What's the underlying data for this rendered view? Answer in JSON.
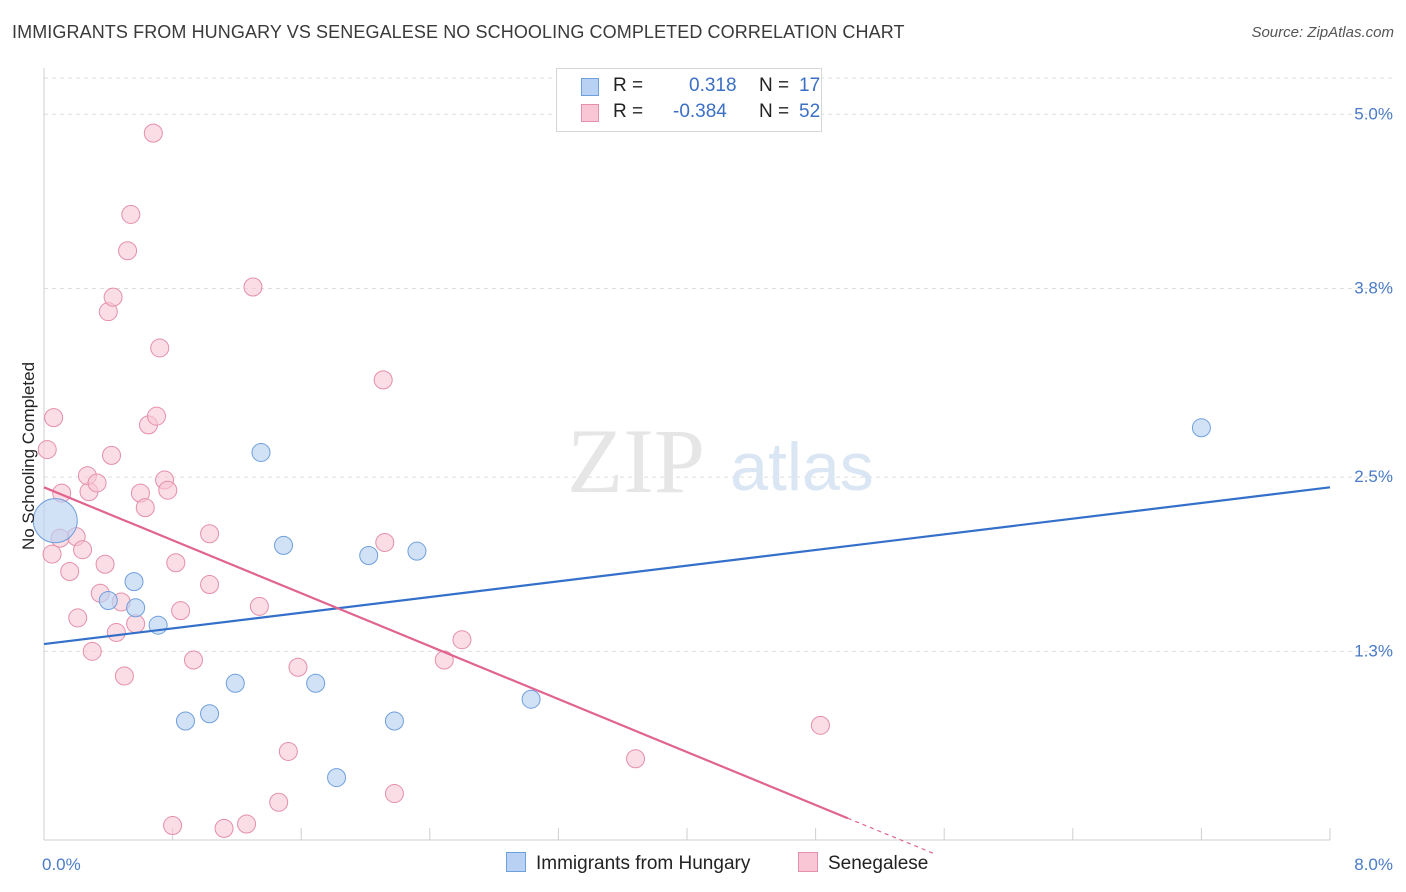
{
  "title": "IMMIGRANTS FROM HUNGARY VS SENEGALESE NO SCHOOLING COMPLETED CORRELATION CHART",
  "source": "Source: ZipAtlas.com",
  "watermark": {
    "zip": "ZIP",
    "atlas": "atlas"
  },
  "colors": {
    "hungary_fill": "#b9d2f3",
    "hungary_stroke": "#6f9fdc",
    "hungary_line": "#3470c9",
    "senegal_fill": "#f9c6d5",
    "senegal_stroke": "#e48fab",
    "senegal_line": "#e0648f",
    "tick_text": "#4a7bc8",
    "grid": "#dddddd"
  },
  "legend": {
    "rows": [
      {
        "r_label": "R =",
        "r_value": "0.318",
        "n_label": "N =",
        "n_value": "17"
      },
      {
        "r_label": "R =",
        "r_value": "-0.384",
        "n_label": "N =",
        "n_value": "52"
      }
    ]
  },
  "bottom_legend": {
    "hungary": "Immigrants from Hungary",
    "senegal": "Senegalese"
  },
  "chart_data": {
    "type": "scatter",
    "title": "IMMIGRANTS FROM HUNGARY VS SENEGALESE NO SCHOOLING COMPLETED CORRELATION CHART",
    "xlabel": "",
    "ylabel": "No Schooling Completed",
    "xlim": [
      0,
      8.0
    ],
    "ylim": [
      0,
      5.25
    ],
    "x_tick_labels": [
      "0.0%",
      "8.0%"
    ],
    "y_ticks": [
      1.3,
      2.5,
      3.8,
      5.0
    ],
    "y_tick_labels": [
      "1.3%",
      "2.5%",
      "3.8%",
      "5.0%"
    ],
    "grid": true,
    "legend_placement": "top-center",
    "series": [
      {
        "name": "Immigrants from Hungary",
        "r": 0.318,
        "n": 17,
        "points": [
          [
            0.07,
            2.2,
            22
          ],
          [
            0.4,
            1.65,
            9
          ],
          [
            0.57,
            1.6,
            9
          ],
          [
            0.56,
            1.78,
            9
          ],
          [
            0.71,
            1.48,
            9
          ],
          [
            0.88,
            0.82,
            9
          ],
          [
            1.03,
            0.87,
            9
          ],
          [
            1.19,
            1.08,
            9
          ],
          [
            1.35,
            2.67,
            9
          ],
          [
            1.49,
            2.03,
            9
          ],
          [
            1.69,
            1.08,
            9
          ],
          [
            1.82,
            0.43,
            9
          ],
          [
            2.02,
            1.96,
            9
          ],
          [
            2.18,
            0.82,
            9
          ],
          [
            2.32,
            1.99,
            9
          ],
          [
            3.03,
            0.97,
            9
          ],
          [
            7.2,
            2.84,
            9
          ]
        ],
        "trend": {
          "x": [
            0.0,
            8.0
          ],
          "y": [
            1.35,
            2.43
          ]
        }
      },
      {
        "name": "Senegalese",
        "r": -0.384,
        "n": 52,
        "points": [
          [
            0.02,
            2.69
          ],
          [
            0.06,
            2.91
          ],
          [
            0.11,
            2.39
          ],
          [
            0.16,
            1.85
          ],
          [
            0.2,
            2.09
          ],
          [
            0.24,
            2.0
          ],
          [
            0.05,
            1.97
          ],
          [
            0.1,
            2.08
          ],
          [
            0.21,
            1.53
          ],
          [
            0.28,
            2.4
          ],
          [
            0.27,
            2.51
          ],
          [
            0.3,
            1.3
          ],
          [
            0.33,
            2.46
          ],
          [
            0.35,
            1.7
          ],
          [
            0.4,
            3.64
          ],
          [
            0.38,
            1.9
          ],
          [
            0.42,
            2.65
          ],
          [
            0.43,
            3.74
          ],
          [
            0.45,
            1.43
          ],
          [
            0.48,
            1.64
          ],
          [
            0.5,
            1.13
          ],
          [
            0.52,
            4.06
          ],
          [
            0.54,
            4.31
          ],
          [
            0.57,
            1.49
          ],
          [
            0.6,
            2.39
          ],
          [
            0.63,
            2.29
          ],
          [
            0.65,
            2.86
          ],
          [
            0.68,
            4.87
          ],
          [
            0.7,
            2.92
          ],
          [
            0.72,
            3.39
          ],
          [
            0.75,
            2.48
          ],
          [
            0.77,
            2.41
          ],
          [
            0.8,
            0.1
          ],
          [
            0.82,
            1.91
          ],
          [
            0.85,
            1.58
          ],
          [
            0.93,
            1.24
          ],
          [
            1.03,
            2.11
          ],
          [
            1.03,
            1.76
          ],
          [
            1.12,
            0.08
          ],
          [
            1.26,
            0.11
          ],
          [
            1.3,
            3.81
          ],
          [
            1.34,
            1.61
          ],
          [
            1.46,
            0.26
          ],
          [
            1.52,
            0.61
          ],
          [
            1.58,
            1.19
          ],
          [
            2.11,
            3.17
          ],
          [
            2.12,
            2.05
          ],
          [
            2.18,
            0.32
          ],
          [
            2.49,
            1.24
          ],
          [
            2.6,
            1.38
          ],
          [
            3.68,
            0.56
          ],
          [
            4.83,
            0.79
          ]
        ],
        "trend": {
          "x": [
            0.0,
            5.0
          ],
          "y": [
            2.43,
            0.15
          ]
        },
        "trend_extension": {
          "x": [
            5.0,
            5.55
          ],
          "y": [
            0.15,
            -0.1
          ]
        }
      }
    ]
  }
}
